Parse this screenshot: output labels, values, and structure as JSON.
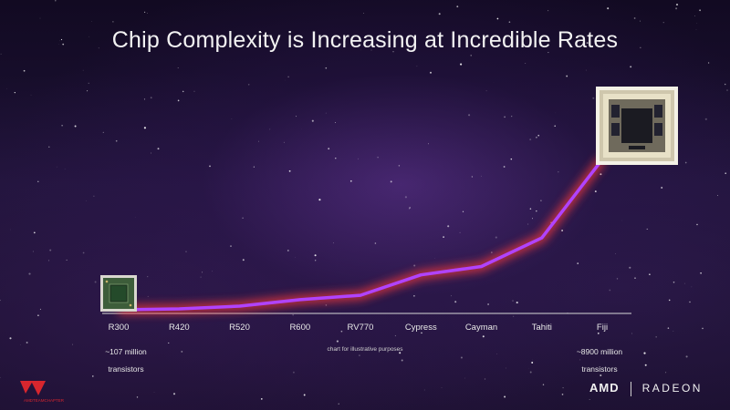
{
  "slide": {
    "title": "Chip Complexity is Increasing at Incredible Rates",
    "start_note_line1": "~107 million",
    "start_note_line2": "transistors",
    "end_note_line1": "~8900 million",
    "end_note_line2": "transistors",
    "center_note": "chart for illustrative purposes",
    "logo_left_text": "AMDTEAMCHAPTER",
    "brand_left": "AMD",
    "brand_right": "RADEON"
  },
  "colors": {
    "line": "#b043ff",
    "glow": "#ff3b3b",
    "axis": "#d8d8d8",
    "text": "#e8e8e8"
  },
  "chart_data": {
    "type": "line",
    "title": "Chip Complexity is Increasing at Incredible Rates",
    "categories": [
      "R300",
      "R420",
      "R520",
      "R600",
      "RV770",
      "Cypress",
      "Cayman",
      "Tahiti",
      "Fiji"
    ],
    "series": [
      {
        "values": [
          107,
          160,
          321,
          700,
          956,
          2150,
          2640,
          4310,
          8900
        ]
      }
    ],
    "ylim": [
      0,
      8900
    ],
    "grid": false,
    "legend": "none",
    "annotations": [
      "~107 million transistors",
      "~8900 million transistors",
      "chart for illustrative purposes"
    ]
  }
}
